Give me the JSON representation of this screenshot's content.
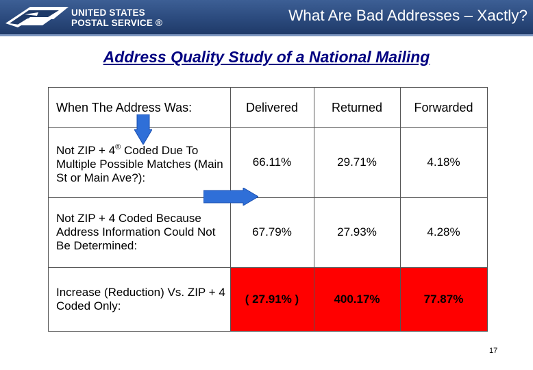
{
  "header": {
    "logo_line1": "UNITED STATES",
    "logo_line2": "POSTAL SERVICE ®",
    "title": "What Are Bad Addresses – Xactly?",
    "bg_color": "#2b4a7d"
  },
  "subtitle": "Address Quality Study of a National Mailing",
  "table": {
    "columns": [
      "When The Address Was:",
      "Delivered",
      "Returned",
      "Forwarded"
    ],
    "rows": [
      {
        "label_a": "Not ZIP + 4",
        "label_sup": "®",
        "label_b": " Coded Due To Multiple Possible Matches (Main St or Main Ave?):",
        "delivered": "66.11%",
        "returned": "29.71%",
        "forwarded": "4.18%"
      },
      {
        "label": "Not ZIP + 4 Coded Because Address Information Could Not Be Determined:",
        "delivered": "67.79%",
        "returned": "27.93%",
        "forwarded": "4.28%"
      },
      {
        "label": "Increase (Reduction) Vs. ZIP + 4 Coded Only:",
        "delivered": "( 27.91% )",
        "returned": "400.17%",
        "forwarded": "77.87%"
      }
    ],
    "highlight_color": "#ff0000"
  },
  "arrow_color": "#2f6fd8",
  "page_number": "17"
}
